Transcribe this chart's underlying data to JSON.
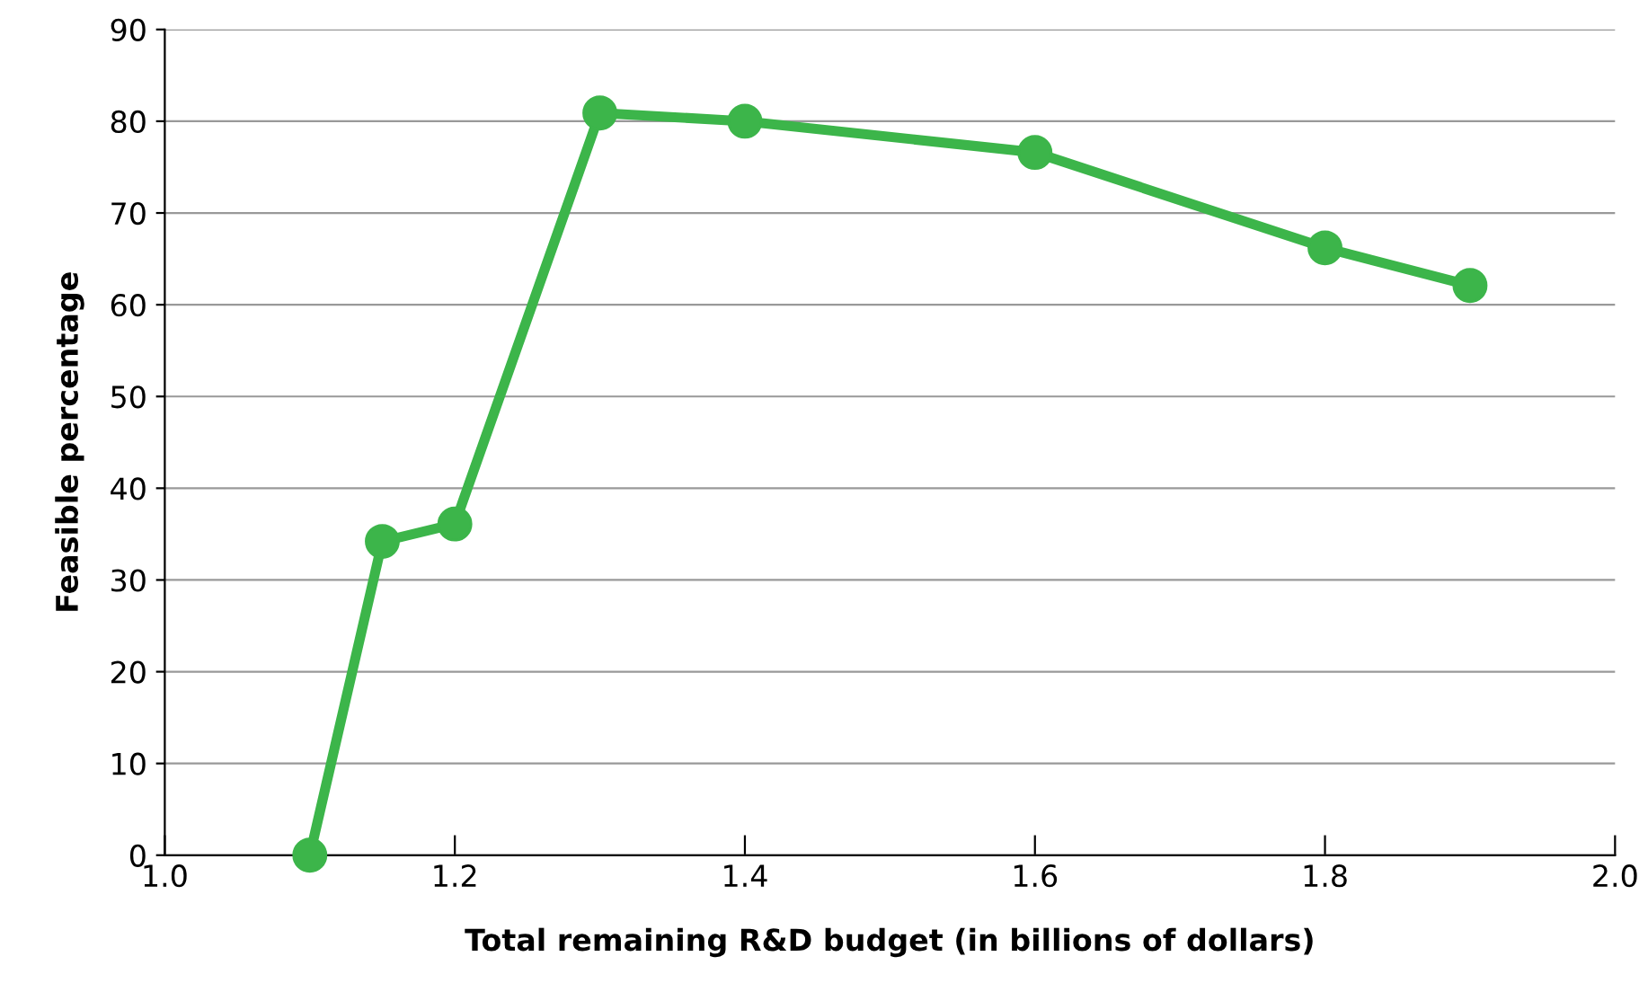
{
  "chart_data": {
    "type": "line",
    "xlabel": "Total remaining R&D budget (in billions of dollars)",
    "ylabel": "Feasible percentage",
    "x": [
      1.1,
      1.15,
      1.2,
      1.3,
      1.4,
      1.6,
      1.8,
      1.9
    ],
    "series": [
      {
        "color": "#3cb54a",
        "values": [
          0,
          34.2,
          36.1,
          80.9,
          80.0,
          76.6,
          66.2,
          62.1
        ]
      }
    ],
    "xlim": [
      1.0,
      2.0
    ],
    "xticks": [
      {
        "value": 1.0,
        "label": "1.0"
      },
      1.2,
      1.4,
      1.6,
      1.8,
      {
        "value": 2.0,
        "label": "2.0"
      }
    ],
    "ylim": [
      0,
      90
    ],
    "yticks": [
      0,
      10,
      20,
      30,
      40,
      50,
      60,
      70,
      80,
      90
    ],
    "grid": "y",
    "marker": "circle",
    "line_style": "solid"
  }
}
